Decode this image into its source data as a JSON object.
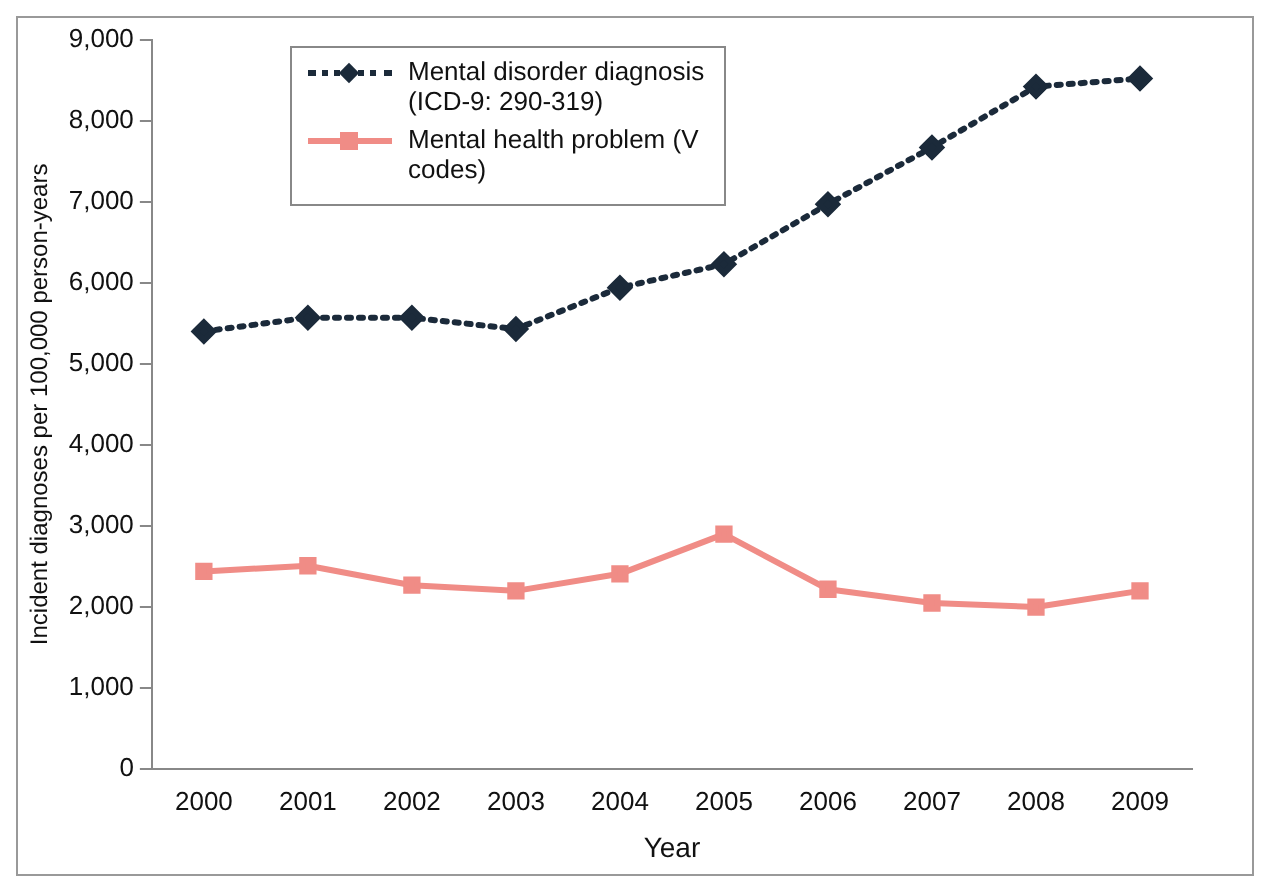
{
  "chart_data": {
    "type": "line",
    "xlabel": "Year",
    "ylabel": "Incident diagnoses per 100,000 person-years",
    "categories": [
      "2000",
      "2001",
      "2002",
      "2003",
      "2004",
      "2005",
      "2006",
      "2007",
      "2008",
      "2009"
    ],
    "series": [
      {
        "name": "Mental disorder diagnosis (ICD-9: 290-319)",
        "color": "#1b2a3a",
        "marker": "diamond",
        "line_style": "dotted",
        "values": [
          5400,
          5570,
          5570,
          5430,
          5940,
          6230,
          6970,
          7670,
          8420,
          8520
        ]
      },
      {
        "name": "Mental health problem (V codes)",
        "color": "#f08c86",
        "marker": "square",
        "line_style": "solid",
        "values": [
          2440,
          2510,
          2270,
          2200,
          2410,
          2900,
          2220,
          2050,
          2000,
          2200
        ]
      }
    ],
    "ylim": [
      0,
      9000
    ],
    "yticks": [
      {
        "value": 0,
        "label": "0"
      },
      {
        "value": 1000,
        "label": "1,000"
      },
      {
        "value": 2000,
        "label": "2,000"
      },
      {
        "value": 3000,
        "label": "3,000"
      },
      {
        "value": 4000,
        "label": "4,000"
      },
      {
        "value": 5000,
        "label": "5,000"
      },
      {
        "value": 6000,
        "label": "6,000"
      },
      {
        "value": 7000,
        "label": "7,000"
      },
      {
        "value": 8000,
        "label": "8,000"
      },
      {
        "value": 9000,
        "label": "9,000"
      }
    ],
    "grid": false,
    "legend": "top left"
  }
}
